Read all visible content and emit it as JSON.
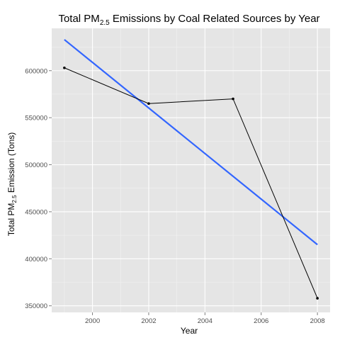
{
  "chart_data": {
    "type": "line",
    "title": {
      "main": "Total PM",
      "sub": "2.5",
      "rest": " Emissions by Coal Related Sources by Year"
    },
    "xlabel": "Year",
    "ylabel": {
      "main": "Total PM",
      "sub": "2.5",
      "rest": " Emission (Tons)"
    },
    "x": [
      1999,
      2002,
      2005,
      2008
    ],
    "series": [
      {
        "values": [
          603000,
          565000,
          570000,
          358000
        ],
        "color": "#000000"
      }
    ],
    "trend_line": {
      "x": [
        1999,
        2008
      ],
      "y": [
        633000,
        415000
      ],
      "color": "#3366FF"
    },
    "xlim": [
      1998.55,
      2008.45
    ],
    "ylim": [
      343000,
      645000
    ],
    "x_ticks": [
      {
        "value": 2000,
        "label": "2000"
      },
      {
        "value": 2002,
        "label": "2002"
      },
      {
        "value": 2004,
        "label": "2004"
      },
      {
        "value": 2006,
        "label": "2006"
      },
      {
        "value": 2008,
        "label": "2008"
      }
    ],
    "y_ticks": [
      {
        "value": 350000,
        "label": "350000"
      },
      {
        "value": 400000,
        "label": "400000"
      },
      {
        "value": 450000,
        "label": "450000"
      },
      {
        "value": 500000,
        "label": "500000"
      },
      {
        "value": 550000,
        "label": "550000"
      },
      {
        "value": 600000,
        "label": "600000"
      }
    ],
    "grid": true,
    "panel_background": "#E5E5E5",
    "grid_color": "#FFFFFF"
  }
}
